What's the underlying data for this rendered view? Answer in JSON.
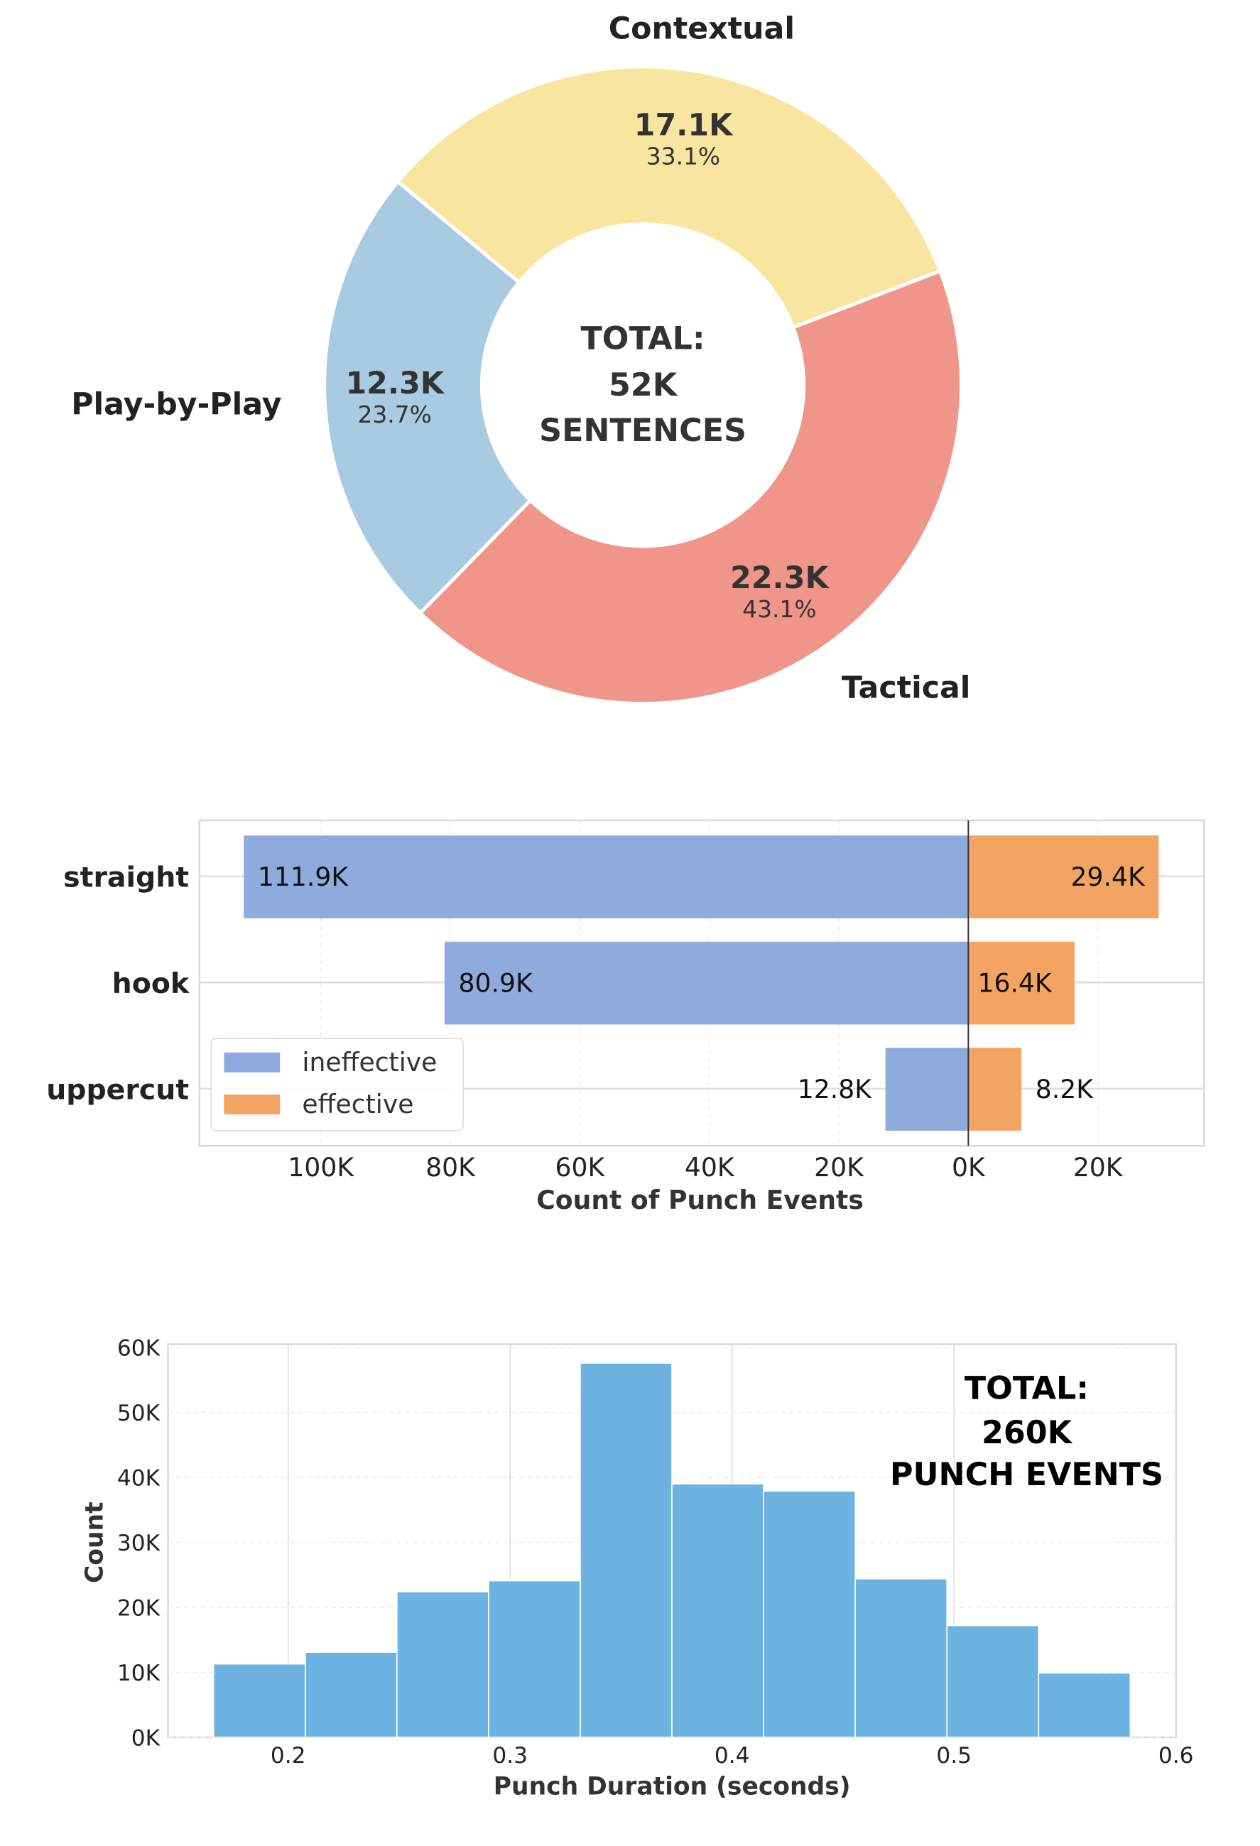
{
  "chart_data": [
    {
      "type": "pie",
      "variant": "donut",
      "center_text": [
        "TOTAL:",
        "52K",
        "SENTENCES"
      ],
      "slices": [
        {
          "label": "Contextual",
          "value_label": "17.1K",
          "percent_label": "33.1%",
          "value": 17.1,
          "percent": 33.1,
          "color": "#f8e6a0"
        },
        {
          "label": "Play-by-Play",
          "value_label": "12.3K",
          "percent_label": "23.7%",
          "value": 12.3,
          "percent": 23.7,
          "color": "#a8cbe2"
        },
        {
          "label": "Tactical",
          "value_label": "22.3K",
          "percent_label": "43.1%",
          "value": 22.3,
          "percent": 43.1,
          "color": "#f0958a"
        }
      ]
    },
    {
      "type": "bar",
      "orientation": "horizontal-diverging",
      "categories": [
        "straight",
        "hook",
        "uppercut"
      ],
      "series": [
        {
          "name": "ineffective",
          "values": [
            111.9,
            80.9,
            12.8
          ],
          "labels": [
            "111.9K",
            "80.9K",
            "12.8K"
          ],
          "color": "#8fabdd",
          "direction": "left"
        },
        {
          "name": "effective",
          "values": [
            29.4,
            16.4,
            8.2
          ],
          "labels": [
            "29.4K",
            "16.4K",
            "8.2K"
          ],
          "color": "#f4a462",
          "direction": "right"
        }
      ],
      "xlabel": "Count of Punch Events",
      "x_ticks": [
        {
          "value": -100,
          "label": "100K"
        },
        {
          "value": -80,
          "label": "80K"
        },
        {
          "value": -60,
          "label": "60K"
        },
        {
          "value": -40,
          "label": "40K"
        },
        {
          "value": -20,
          "label": "20K"
        },
        {
          "value": 0,
          "label": "0K"
        },
        {
          "value": 20,
          "label": "20K"
        }
      ],
      "xlim": [
        -119,
        36
      ],
      "unit": "thousands",
      "legend": "lower-left",
      "grid": true
    },
    {
      "type": "histogram",
      "bin_edges": [
        0.1664,
        0.2077,
        0.249,
        0.2903,
        0.3316,
        0.3729,
        0.4142,
        0.4555,
        0.4968,
        0.5381,
        0.5794
      ],
      "values": [
        11.3,
        13.1,
        22.4,
        24.1,
        57.6,
        39.0,
        37.9,
        24.4,
        17.2,
        9.9
      ],
      "unit": "thousands",
      "color": "#6cb3e2",
      "xlabel": "Punch Duration (seconds)",
      "ylabel": "Count",
      "xlim": [
        0.146,
        0.6
      ],
      "ylim": [
        0,
        60
      ],
      "x_ticks": [
        "0.2",
        "0.3",
        "0.4",
        "0.5",
        "0.6"
      ],
      "y_ticks": [
        "0K",
        "10K",
        "20K",
        "30K",
        "40K",
        "50K",
        "60K"
      ],
      "annotation": [
        "TOTAL:",
        "260K",
        "PUNCH EVENTS"
      ],
      "grid": true
    }
  ]
}
